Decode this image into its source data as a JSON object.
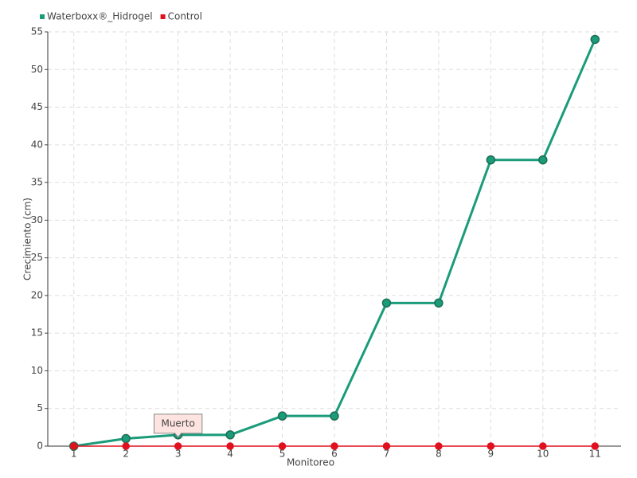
{
  "chart_data": {
    "type": "line",
    "categories": [
      "1",
      "2",
      "3",
      "4",
      "5",
      "6",
      "7",
      "8",
      "9",
      "10",
      "11"
    ],
    "series": [
      {
        "name": "Waterboxx®_Hidrogel",
        "color": "#1a9b7a",
        "values": [
          0,
          1,
          1.5,
          1.5,
          4,
          4,
          19,
          19,
          38,
          38,
          54
        ]
      },
      {
        "name": "Control",
        "color": "#e0101e",
        "values": [
          0,
          0,
          0,
          0,
          0,
          0,
          0,
          0,
          0,
          0,
          0
        ]
      }
    ],
    "xlabel": "Monitoreo",
    "ylabel": "Crecimiento (cm)",
    "ylim": [
      0,
      55
    ],
    "yticks": [
      0,
      5,
      10,
      15,
      20,
      25,
      30,
      35,
      40,
      45,
      50,
      55
    ],
    "grid": true,
    "legend": "top-left",
    "annotations": [
      {
        "text": "Muerto",
        "x": "3"
      }
    ]
  }
}
